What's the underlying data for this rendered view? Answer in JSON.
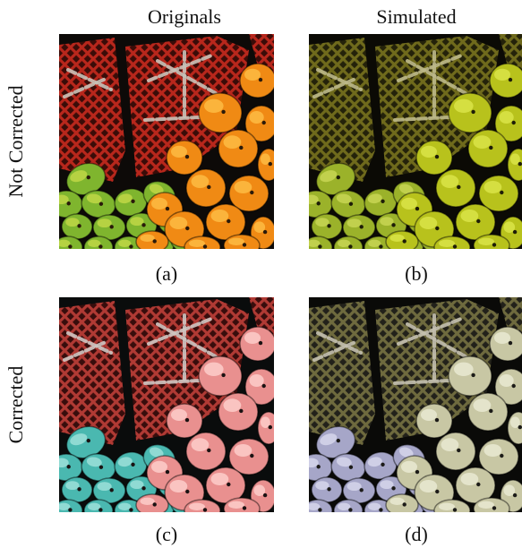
{
  "columns": [
    "Originals",
    "Simulated"
  ],
  "rows": [
    "Not Corrected",
    "Corrected"
  ],
  "panels": [
    {
      "caption": "(a)",
      "palette": {
        "bg": "#0d0a08",
        "basket": "#b8271c",
        "basketDark": "#3a0c08",
        "strap": "#c9c2b8",
        "mangoL": "#7fb52e",
        "mangoLhi": "#c8dc4a",
        "mangoR": "#f08a14",
        "mangoRhi": "#ffc24a",
        "dot": "#2a1a0a"
      }
    },
    {
      "caption": "(b)",
      "palette": {
        "bg": "#0b0a05",
        "basket": "#6f6a1c",
        "basketDark": "#24220a",
        "strap": "#bdb98a",
        "mangoL": "#9bb22a",
        "mangoLhi": "#cdd95a",
        "mangoR": "#b8c21c",
        "mangoRhi": "#dfe84e",
        "dot": "#1e1d08"
      }
    },
    {
      "caption": "(c)",
      "palette": {
        "bg": "#0a0c0c",
        "basket": "#b03a34",
        "basketDark": "#380d0c",
        "strap": "#cfc6c2",
        "mangoL": "#4ab8b0",
        "mangoLhi": "#a8e6df",
        "mangoR": "#e9908f",
        "mangoRhi": "#ffd6d2",
        "dot": "#1a1212"
      }
    },
    {
      "caption": "(d)",
      "palette": {
        "bg": "#0a0a08",
        "basket": "#6e6a3e",
        "basketDark": "#22211a",
        "strap": "#c4c0b0",
        "mangoL": "#a6a6c8",
        "mangoLhi": "#dcdcf0",
        "mangoR": "#c8c7a4",
        "mangoRhi": "#eeeed8",
        "dot": "#1c1b18"
      }
    }
  ]
}
